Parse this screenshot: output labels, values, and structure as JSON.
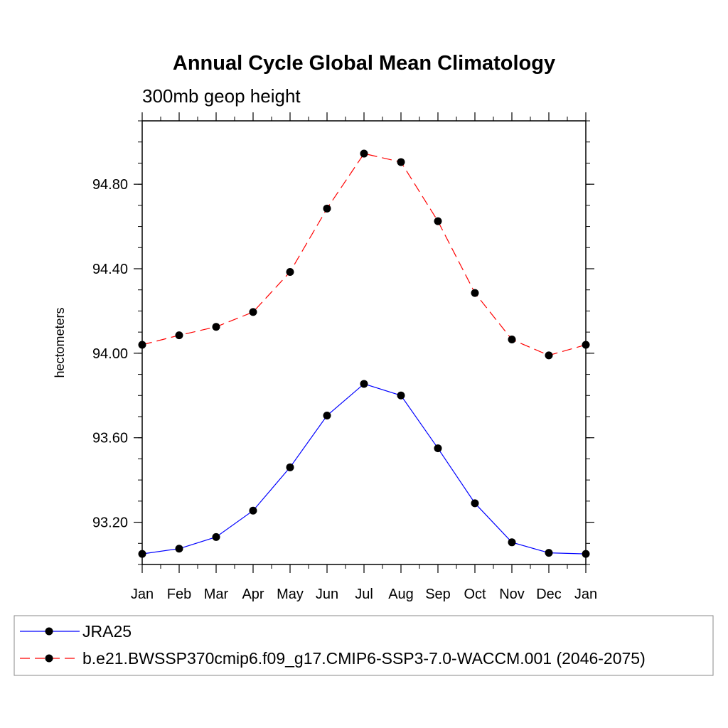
{
  "chart_data": {
    "type": "line",
    "title": "Annual Cycle Global Mean Climatology",
    "subtitle": "300mb geop height",
    "xlabel": "",
    "ylabel": "hectometers",
    "categories": [
      "Jan",
      "Feb",
      "Mar",
      "Apr",
      "May",
      "Jun",
      "Jul",
      "Aug",
      "Sep",
      "Oct",
      "Nov",
      "Dec",
      "Jan"
    ],
    "ylim": [
      93.0,
      95.1
    ],
    "yticks": [
      "93.20",
      "93.60",
      "94.00",
      "94.40",
      "94.80"
    ],
    "ytick_values": [
      93.2,
      93.6,
      94.0,
      94.4,
      94.8
    ],
    "grid": false,
    "legend_position": "bottom",
    "series": [
      {
        "name": "JRA25",
        "color": "#0000ff",
        "dash": "solid",
        "values": [
          93.05,
          93.075,
          93.13,
          93.255,
          93.46,
          93.705,
          93.855,
          93.8,
          93.55,
          93.29,
          93.105,
          93.055,
          93.05
        ]
      },
      {
        "name": "b.e21.BWSSP370cmip6.f09_g17.CMIP6-SSP3-7.0-WACCM.001 (2046-2075)",
        "color": "#ff0000",
        "dash": "dashed",
        "values": [
          94.04,
          94.085,
          94.125,
          94.195,
          94.385,
          94.685,
          94.945,
          94.905,
          94.625,
          94.285,
          94.065,
          93.99,
          94.04
        ]
      }
    ]
  }
}
